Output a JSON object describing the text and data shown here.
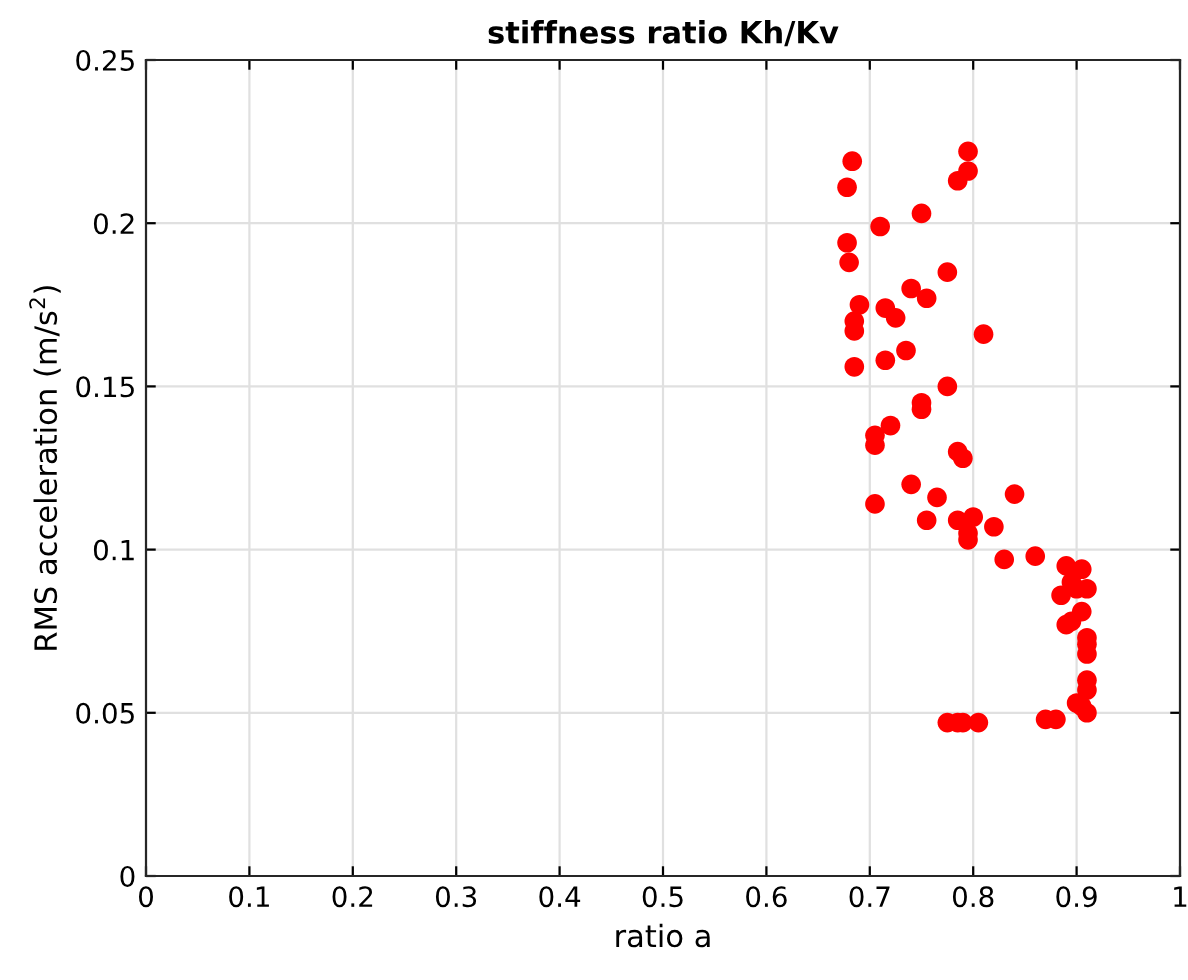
{
  "chart_data": {
    "type": "scatter",
    "title": "stiffness ratio Kh/Kv",
    "xlabel": "ratio a",
    "ylabel": "RMS acceleration (m/s$^{2}$)",
    "x": [
      0.683,
      0.678,
      0.795,
      0.795,
      0.785,
      0.75,
      0.71,
      0.678,
      0.68,
      0.775,
      0.69,
      0.715,
      0.725,
      0.74,
      0.755,
      0.685,
      0.685,
      0.735,
      0.715,
      0.685,
      0.81,
      0.775,
      0.72,
      0.705,
      0.705,
      0.75,
      0.75,
      0.785,
      0.79,
      0.74,
      0.765,
      0.705,
      0.84,
      0.755,
      0.785,
      0.8,
      0.795,
      0.795,
      0.82,
      0.86,
      0.83,
      0.89,
      0.905,
      0.895,
      0.9,
      0.91,
      0.885,
      0.905,
      0.89,
      0.895,
      0.91,
      0.91,
      0.91,
      0.91,
      0.91,
      0.9,
      0.91,
      0.905,
      0.775,
      0.785,
      0.79,
      0.805,
      0.87,
      0.88
    ],
    "series": [
      {
        "color": "#ff0000",
        "values": [
          0.219,
          0.211,
          0.222,
          0.216,
          0.213,
          0.203,
          0.199,
          0.194,
          0.188,
          0.185,
          0.175,
          0.174,
          0.171,
          0.18,
          0.177,
          0.17,
          0.167,
          0.161,
          0.158,
          0.156,
          0.166,
          0.15,
          0.138,
          0.135,
          0.132,
          0.145,
          0.143,
          0.13,
          0.128,
          0.12,
          0.116,
          0.114,
          0.117,
          0.109,
          0.109,
          0.11,
          0.105,
          0.103,
          0.107,
          0.098,
          0.097,
          0.095,
          0.094,
          0.09,
          0.088,
          0.088,
          0.086,
          0.081,
          0.077,
          0.078,
          0.073,
          0.071,
          0.068,
          0.06,
          0.057,
          0.053,
          0.05,
          0.052,
          0.047,
          0.047,
          0.047,
          0.047,
          0.048,
          0.048
        ]
      }
    ],
    "xlim": [
      0,
      1
    ],
    "xticks": [
      0,
      0.1,
      0.2,
      0.3,
      0.4,
      0.5,
      0.6,
      0.7,
      0.8,
      0.9,
      1
    ],
    "ylim": [
      0,
      0.25
    ],
    "yticks": [
      0,
      0.05,
      0.1,
      0.15,
      0.2,
      0.25
    ],
    "grid": true,
    "marker": "circle"
  }
}
